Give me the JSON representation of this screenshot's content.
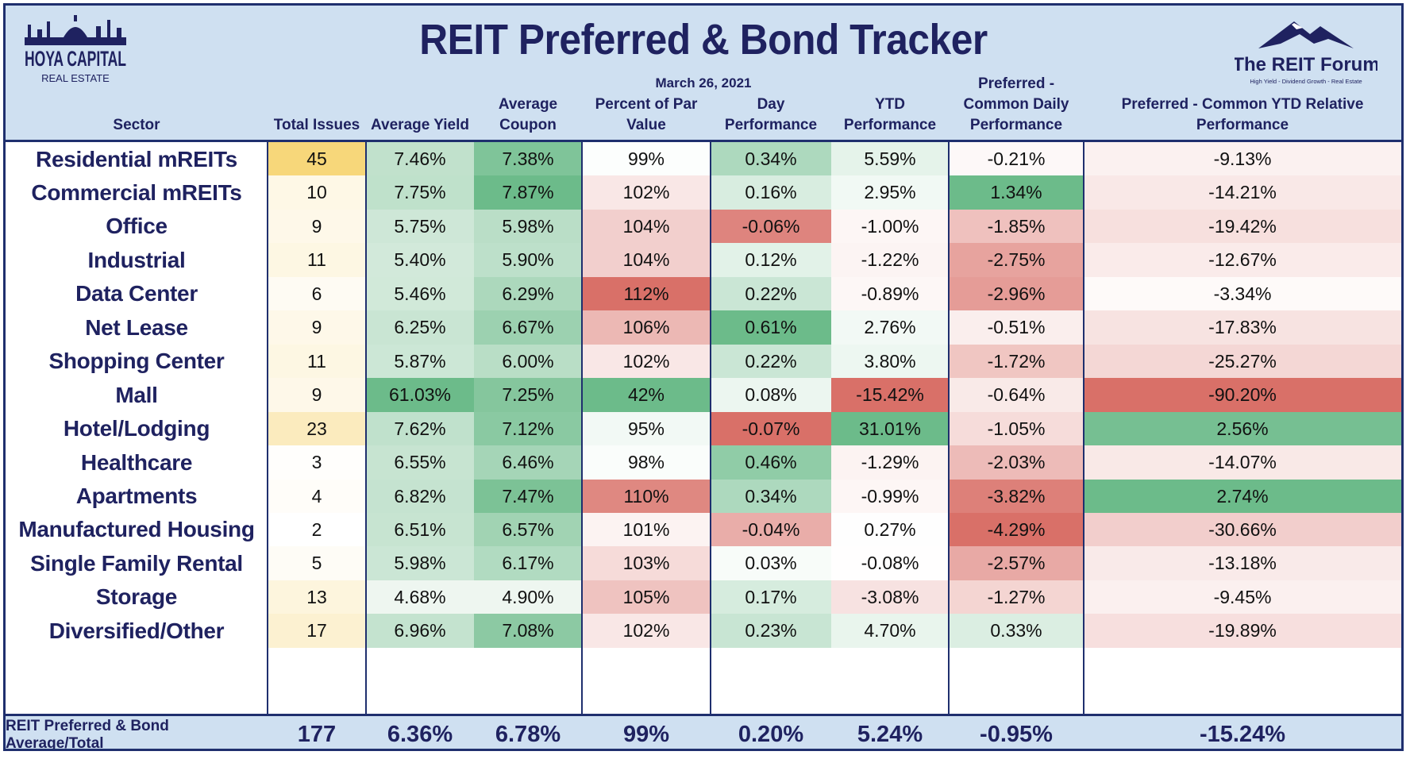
{
  "title": "REIT Preferred & Bond Tracker",
  "date": "March 26, 2021",
  "logos": {
    "left": {
      "line1": "HOYA CAPITAL",
      "line2": "REAL ESTATE"
    },
    "right": {
      "line1": "The REIT Forum",
      "line2": "High Yield - Dividend Growth - Real Estate"
    }
  },
  "colors": {
    "navy": "#1f2260",
    "header_bg": "#cfe0f1",
    "border": "#1f2f6e",
    "green": "#6cbb8a",
    "red": "#d97068",
    "yellow": "#f7d77a"
  },
  "chart_data": {
    "type": "table",
    "columns": [
      "Sector",
      "Total Issues",
      "Average Yield",
      "Average Coupon",
      "Percent of Par Value",
      "Day Performance",
      "YTD Performance",
      "Preferred - Common Daily Performance",
      "Preferred - Common YTD Relative Performance"
    ],
    "rows": [
      [
        "Residential mREITs",
        "45",
        "7.46%",
        "7.38%",
        "99%",
        "0.34%",
        "5.59%",
        "-0.21%",
        "-9.13%"
      ],
      [
        "Commercial mREITs",
        "10",
        "7.75%",
        "7.87%",
        "102%",
        "0.16%",
        "2.95%",
        "1.34%",
        "-14.21%"
      ],
      [
        "Office",
        "9",
        "5.75%",
        "5.98%",
        "104%",
        "-0.06%",
        "-1.00%",
        "-1.85%",
        "-19.42%"
      ],
      [
        "Industrial",
        "11",
        "5.40%",
        "5.90%",
        "104%",
        "0.12%",
        "-1.22%",
        "-2.75%",
        "-12.67%"
      ],
      [
        "Data Center",
        "6",
        "5.46%",
        "6.29%",
        "112%",
        "0.22%",
        "-0.89%",
        "-2.96%",
        "-3.34%"
      ],
      [
        "Net Lease",
        "9",
        "6.25%",
        "6.67%",
        "106%",
        "0.61%",
        "2.76%",
        "-0.51%",
        "-17.83%"
      ],
      [
        "Shopping Center",
        "11",
        "5.87%",
        "6.00%",
        "102%",
        "0.22%",
        "3.80%",
        "-1.72%",
        "-25.27%"
      ],
      [
        "Mall",
        "9",
        "61.03%",
        "7.25%",
        "42%",
        "0.08%",
        "-15.42%",
        "-0.64%",
        "-90.20%"
      ],
      [
        "Hotel/Lodging",
        "23",
        "7.62%",
        "7.12%",
        "95%",
        "-0.07%",
        "31.01%",
        "-1.05%",
        "2.56%"
      ],
      [
        "Healthcare",
        "3",
        "6.55%",
        "6.46%",
        "98%",
        "0.46%",
        "-1.29%",
        "-2.03%",
        "-14.07%"
      ],
      [
        "Apartments",
        "4",
        "6.82%",
        "7.47%",
        "110%",
        "0.34%",
        "-0.99%",
        "-3.82%",
        "2.74%"
      ],
      [
        "Manufactured Housing",
        "2",
        "6.51%",
        "6.57%",
        "101%",
        "-0.04%",
        "0.27%",
        "-4.29%",
        "-30.66%"
      ],
      [
        "Single Family Rental",
        "5",
        "5.98%",
        "6.17%",
        "103%",
        "0.03%",
        "-0.08%",
        "-2.57%",
        "-13.18%"
      ],
      [
        "Storage",
        "13",
        "4.68%",
        "4.90%",
        "105%",
        "0.17%",
        "-3.08%",
        "-1.27%",
        "-9.45%"
      ],
      [
        "Diversified/Other",
        "17",
        "6.96%",
        "7.08%",
        "102%",
        "0.23%",
        "4.70%",
        "0.33%",
        "-19.89%"
      ]
    ],
    "total": [
      "REIT Preferred & Bond Average/Total",
      "177",
      "6.36%",
      "6.78%",
      "99%",
      "0.20%",
      "5.24%",
      "-0.95%",
      "-15.24%"
    ]
  }
}
